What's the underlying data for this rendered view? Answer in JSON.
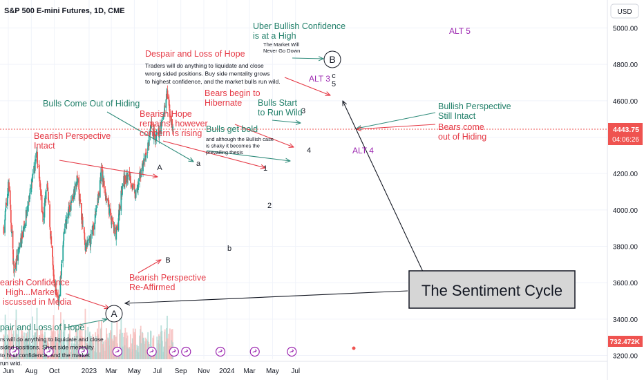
{
  "header": {
    "symbol_title": "S&P 500 E-mini Futures, 1D, CME",
    "currency": "USD"
  },
  "price_badge": {
    "price": "4443.75",
    "countdown": "04:06:26",
    "volume": "732.472K"
  },
  "colors": {
    "up": "#26a69a",
    "down": "#ef5350",
    "green_text": "#22806a",
    "red_text": "#e53945",
    "purple_text": "#9c27b0",
    "price_tag": "#ef5350",
    "arrow_green": "#2e8b7a",
    "arrow_red": "#e53945",
    "grid": "#f0f3fa",
    "axis_text": "#131722"
  },
  "chart_data": {
    "type": "candlestick",
    "title": "S&P 500 E-mini Futures, 1D, CME",
    "xlabel": "",
    "ylabel": "",
    "ylim": [
      3180,
      5100
    ],
    "y_ticks": [
      3200,
      3400,
      3600,
      3800,
      4000,
      4200,
      4400,
      4600,
      4800,
      5000
    ],
    "y_tick_labels": [
      "3200.00",
      "3400.00",
      "3600.00",
      "3800.00",
      "4000.00",
      "4200.00",
      "4400.00",
      "4600.00",
      "4800.00",
      "5000.00"
    ],
    "x_ticks": [
      {
        "date": "2022-06-01",
        "label": "Jun"
      },
      {
        "date": "2022-08-01",
        "label": "Aug"
      },
      {
        "date": "2022-10-01",
        "label": "Oct"
      },
      {
        "date": "2023-01-01",
        "label": "2023"
      },
      {
        "date": "2023-03-01",
        "label": "Mar"
      },
      {
        "date": "2023-05-01",
        "label": "May"
      },
      {
        "date": "2023-07-01",
        "label": "Jul"
      },
      {
        "date": "2023-09-01",
        "label": "Sep"
      },
      {
        "date": "2023-11-01",
        "label": "Nov"
      },
      {
        "date": "2024-01-01",
        "label": "2024"
      },
      {
        "date": "2024-03-01",
        "label": "Mar"
      },
      {
        "date": "2024-05-01",
        "label": "May"
      },
      {
        "date": "2024-07-01",
        "label": "Jul"
      }
    ],
    "price_path": [
      {
        "date": "2022-05-20",
        "close": 3900
      },
      {
        "date": "2022-06-02",
        "close": 4150
      },
      {
        "date": "2022-06-16",
        "close": 3660
      },
      {
        "date": "2022-07-01",
        "close": 3800
      },
      {
        "date": "2022-07-20",
        "close": 3990
      },
      {
        "date": "2022-08-16",
        "close": 4310
      },
      {
        "date": "2022-09-01",
        "close": 3950
      },
      {
        "date": "2022-09-12",
        "close": 4140
      },
      {
        "date": "2022-09-30",
        "close": 3590
      },
      {
        "date": "2022-10-13",
        "close": 3500
      },
      {
        "date": "2022-10-28",
        "close": 3900
      },
      {
        "date": "2022-11-15",
        "close": 4050
      },
      {
        "date": "2022-12-01",
        "close": 4170
      },
      {
        "date": "2022-12-22",
        "close": 3790
      },
      {
        "date": "2023-01-05",
        "close": 3830
      },
      {
        "date": "2023-01-25",
        "close": 4060
      },
      {
        "date": "2023-02-02",
        "close": 4210
      },
      {
        "date": "2023-02-24",
        "close": 3990
      },
      {
        "date": "2023-03-13",
        "close": 3850
      },
      {
        "date": "2023-03-31",
        "close": 4150
      },
      {
        "date": "2023-04-18",
        "close": 4190
      },
      {
        "date": "2023-05-04",
        "close": 4070
      },
      {
        "date": "2023-05-19",
        "close": 4220
      },
      {
        "date": "2023-06-02",
        "close": 4300
      },
      {
        "date": "2023-06-15",
        "close": 4460
      },
      {
        "date": "2023-06-26",
        "close": 4380
      },
      {
        "date": "2023-07-10",
        "close": 4450
      },
      {
        "date": "2023-07-27",
        "close": 4640
      },
      {
        "date": "2023-08-03",
        "close": 4530
      },
      {
        "date": "2023-08-11",
        "close": 4443.75
      }
    ],
    "current_price": 4443.75,
    "volume_label": "732.472K"
  },
  "annotations": {
    "despair_top_title": "Despair and Loss of Hope",
    "despair_top_body": [
      "Traders will do anything to liquidate and close",
      "wrong sided positions.  Buy side mentality grows",
      "to highest confidence, and the market bulls run wild."
    ],
    "uber_title_1": "Uber Bullish Confidence",
    "uber_title_2": "is at a High",
    "uber_sub_1": "The Market Will",
    "uber_sub_2": "Never Go Down",
    "wave_B": "B",
    "alt5": "ALT 5",
    "alt3": "ALT 3",
    "wave_c": "c",
    "wave_5": "5",
    "bulls_hiding": "Bulls Come Out of Hiding",
    "bears_hibernate_1": "Bears begin to",
    "bears_hibernate_2": "Hibernate",
    "bulls_start_1": "Bulls Start",
    "bulls_start_2": "to Run Wild",
    "wave_3": "3",
    "bearish_hope_1": "Bearish Hope",
    "bearish_hope_2": "remains, however",
    "bearish_hope_3": "concern is rising",
    "bulls_bold_title": "Bulls get bold",
    "bulls_bold_body": [
      "and although the Bullish case",
      "is shaky it becomes the",
      "prevailing thesis"
    ],
    "wave_4": "4",
    "alt4": "ALT 4",
    "bullish_persp_1": "Bullish Perspective",
    "bullish_persp_2": "Still Intact",
    "bears_come_1": "Bears come",
    "bears_come_2": "out of Hiding",
    "bearish_persp_1": "Bearish Perspective",
    "bearish_persp_2": "Intact",
    "wave_A_upper": "A",
    "wave_a_lower": "a",
    "wave_1": "1",
    "wave_2": "2",
    "wave_b_lower": "b",
    "wave_B_upper": "B",
    "bearish_reaffirm_1": "Bearish Perspective",
    "bearish_reaffirm_2": "Re-Affirmed",
    "bear_conf_1": "earish Confidence",
    "bear_conf_2": "High...Market",
    "bear_conf_3": "iscussed in Media",
    "wave_A_circle": "A",
    "despair_bottom_title": "pair and Loss of Hope",
    "despair_bottom_body": [
      "rs will do anything to liquidate and close",
      "sided positions.  Short side mentality",
      "to hi      st confidence, and the market",
      "                    run wild."
    ],
    "sentiment_cycle": "The Sentiment Cycle"
  }
}
